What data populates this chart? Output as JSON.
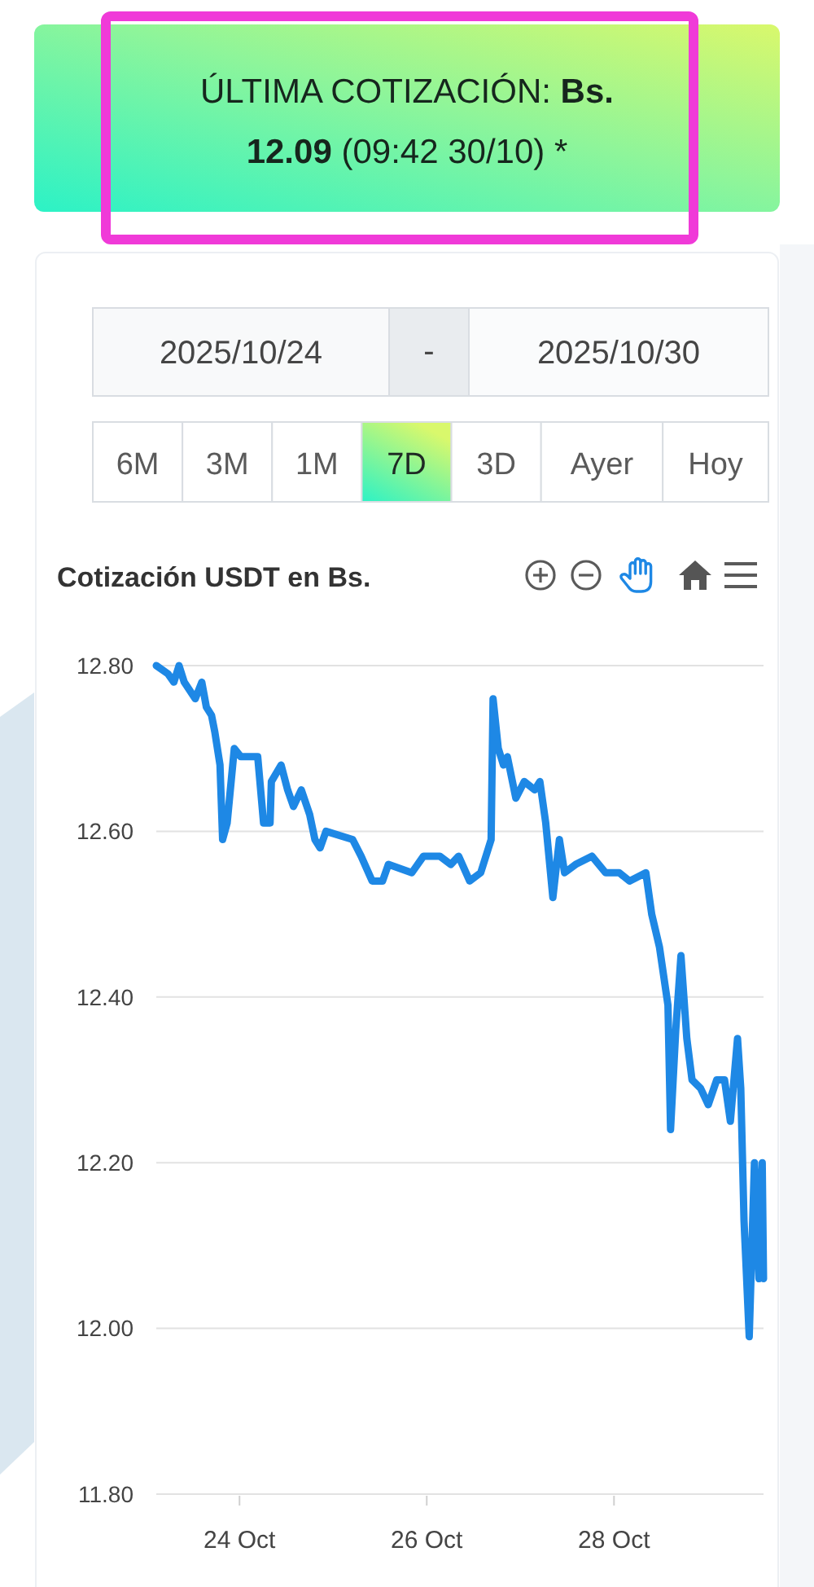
{
  "chart_data": {
    "type": "line",
    "title": "Cotización USDT en Bs.",
    "annotations": [
      "ÚLTIMA COTIZACIÓN:",
      "Bs.",
      "12.09",
      "(09:42 30/10) *",
      "2025/10/24",
      "-",
      "2025/10/30",
      "6M",
      "3M",
      "1M",
      "7D",
      "3D",
      "Ayer",
      "Hoy"
    ],
    "x": [
      "2025-10-23T02:40",
      "2025-10-23T05:40",
      "2025-10-23T07:10",
      "2025-10-23T08:30",
      "2025-10-23T09:50",
      "2025-10-23T12:40",
      "2025-10-23T14:20",
      "2025-10-23T15:30",
      "2025-10-23T16:50",
      "2025-10-23T17:40",
      "2025-10-23T19:00",
      "2025-10-23T19:40",
      "2025-10-23T20:50",
      "2025-10-23T22:40",
      "2025-10-24T00:20",
      "2025-10-24T04:40",
      "2025-10-24T06:10",
      "2025-10-24T07:50",
      "2025-10-24T08:10",
      "2025-10-24T10:40",
      "2025-10-24T12:20",
      "2025-10-24T13:50",
      "2025-10-24T15:50",
      "2025-10-24T18:00",
      "2025-10-24T19:20",
      "2025-10-24T20:40",
      "2025-10-24T22:10",
      "2025-10-25T05:00",
      "2025-10-25T07:10",
      "2025-10-25T10:00",
      "2025-10-25T12:40",
      "2025-10-25T14:10",
      "2025-10-25T20:10",
      "2025-10-25T23:10",
      "2025-10-26T03:20",
      "2025-10-26T06:10",
      "2025-10-26T08:10",
      "2025-10-26T11:00",
      "2025-10-26T13:50",
      "2025-10-26T15:50",
      "2025-10-26T16:30",
      "2025-10-26T17:00",
      "2025-10-26T18:20",
      "2025-10-26T19:40",
      "2025-10-26T20:40",
      "2025-10-26T22:50",
      "2025-10-27T01:00",
      "2025-10-27T03:40",
      "2025-10-27T05:00",
      "2025-10-27T06:30",
      "2025-10-27T08:20",
      "2025-10-27T10:00",
      "2025-10-27T11:20",
      "2025-10-27T14:10",
      "2025-10-27T18:20",
      "2025-10-27T21:50",
      "2025-10-28T01:20",
      "2025-10-28T04:00",
      "2025-10-28T08:10",
      "2025-10-28T09:40",
      "2025-10-28T11:40",
      "2025-10-28T13:50",
      "2025-10-28T14:30",
      "2025-10-28T15:50",
      "2025-10-28T17:10",
      "2025-10-28T18:40",
      "2025-10-28T20:00",
      "2025-10-28T22:10",
      "2025-10-29T00:10",
      "2025-10-29T02:20",
      "2025-10-29T04:20",
      "2025-10-29T05:50",
      "2025-10-29T07:40",
      "2025-10-29T08:30",
      "2025-10-29T09:20",
      "2025-10-29T10:40",
      "2025-10-29T12:00",
      "2025-10-29T13:10",
      "2025-10-29T14:00",
      "2025-10-29T14:20"
    ],
    "series": [
      {
        "color": "#1e88e5",
        "values": [
          12.8,
          12.79,
          12.78,
          12.8,
          12.78,
          12.76,
          12.78,
          12.75,
          12.74,
          12.72,
          12.68,
          12.59,
          12.61,
          12.7,
          12.69,
          12.69,
          12.61,
          12.61,
          12.66,
          12.68,
          12.65,
          12.63,
          12.65,
          12.62,
          12.59,
          12.58,
          12.6,
          12.59,
          12.57,
          12.54,
          12.54,
          12.56,
          12.55,
          12.57,
          12.57,
          12.56,
          12.57,
          12.54,
          12.55,
          12.58,
          12.59,
          12.76,
          12.7,
          12.68,
          12.69,
          12.64,
          12.66,
          12.65,
          12.66,
          12.61,
          12.52,
          12.59,
          12.55,
          12.56,
          12.57,
          12.55,
          12.55,
          12.54,
          12.55,
          12.5,
          12.46,
          12.39,
          12.24,
          12.36,
          12.45,
          12.35,
          12.3,
          12.29,
          12.27,
          12.3,
          12.3,
          12.25,
          12.35,
          12.29,
          12.13,
          11.99,
          12.2,
          12.06,
          12.2,
          12.06
        ]
      }
    ],
    "xlim": [
      "2025-10-23T02:40",
      "2025-10-29T14:20"
    ],
    "xticks": [
      {
        "value": "2025-10-24",
        "label": "24 Oct"
      },
      {
        "value": "2025-10-26",
        "label": "26 Oct"
      },
      {
        "value": "2025-10-28",
        "label": "28 Oct"
      }
    ],
    "ylim": [
      11.8,
      12.8
    ],
    "yticks": [
      {
        "value": 11.8,
        "label": "11.80"
      },
      {
        "value": 12.0,
        "label": "12.00"
      },
      {
        "value": 12.2,
        "label": "12.20"
      },
      {
        "value": 12.4,
        "label": "12.40"
      },
      {
        "value": 12.6,
        "label": "12.60"
      },
      {
        "value": 12.8,
        "label": "12.80"
      }
    ],
    "grid": "y"
  }
}
